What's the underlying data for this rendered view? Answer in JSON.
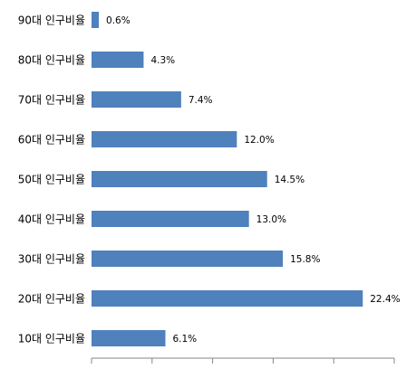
{
  "chart_data": {
    "type": "bar",
    "orientation": "horizontal",
    "categories": [
      "90대 인구비율",
      "80대 인구비율",
      "70대 인구비율",
      "60대 인구비율",
      "50대 인구비율",
      "40대 인구비율",
      "30대 인구비율",
      "20대 인구비율",
      "10대 인구비율"
    ],
    "values": [
      0.6,
      4.3,
      7.4,
      12.0,
      14.5,
      13.0,
      15.8,
      22.4,
      6.1
    ],
    "value_labels": [
      "0.6%",
      "4.3%",
      "7.4%",
      "12.0%",
      "14.5%",
      "13.0%",
      "15.8%",
      "22.4%",
      "6.1%"
    ],
    "color": "#4f81bd",
    "xlim": [
      0,
      25
    ],
    "xticks": [
      0,
      5,
      10,
      15,
      20,
      25
    ]
  }
}
